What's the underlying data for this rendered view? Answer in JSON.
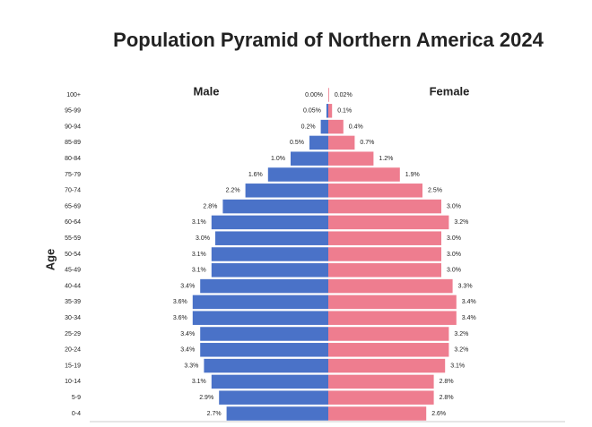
{
  "chart_data": {
    "type": "pyramid",
    "title": "Population Pyramid of Northern America 2024",
    "y_label": "Age",
    "categories": [
      "100+",
      "95-99",
      "90-94",
      "85-89",
      "80-84",
      "75-79",
      "70-74",
      "65-69",
      "60-64",
      "55-59",
      "50-54",
      "45-49",
      "40-44",
      "35-39",
      "30-34",
      "25-29",
      "20-24",
      "15-19",
      "10-14",
      "5-9",
      "0-4"
    ],
    "xlim": [
      -6,
      6
    ],
    "series": [
      {
        "name": "Male",
        "color": "#4a72c8",
        "values": [
          0,
          0.05,
          0.2,
          0.5,
          1.0,
          1.6,
          2.2,
          2.8,
          3.1,
          3.0,
          3.1,
          3.1,
          3.4,
          3.6,
          3.6,
          3.4,
          3.4,
          3.3,
          3.1,
          2.9,
          2.7
        ],
        "value_labels": [
          "0.00%",
          "0.05%",
          "0.2%",
          "0.5%",
          "1.0%",
          "1.6%",
          "2.2%",
          "2.8%",
          "3.1%",
          "3.0%",
          "3.1%",
          "3.1%",
          "3.4%",
          "3.6%",
          "3.6%",
          "3.4%",
          "3.4%",
          "3.3%",
          "3.1%",
          "2.9%",
          "2.7%"
        ]
      },
      {
        "name": "Female",
        "color": "#ee7d8f",
        "values": [
          0.02,
          0.1,
          0.4,
          0.7,
          1.2,
          1.9,
          2.5,
          3.0,
          3.2,
          3.0,
          3.0,
          3.0,
          3.3,
          3.4,
          3.4,
          3.2,
          3.2,
          3.1,
          2.8,
          2.8,
          2.6
        ],
        "value_labels": [
          "0.02%",
          "0.1%",
          "0.4%",
          "0.7%",
          "1.2%",
          "1.9%",
          "2.5%",
          "3.0%",
          "3.2%",
          "3.0%",
          "3.0%",
          "3.0%",
          "3.3%",
          "3.4%",
          "3.4%",
          "3.2%",
          "3.2%",
          "3.1%",
          "2.8%",
          "2.8%",
          "2.6%"
        ]
      }
    ]
  }
}
